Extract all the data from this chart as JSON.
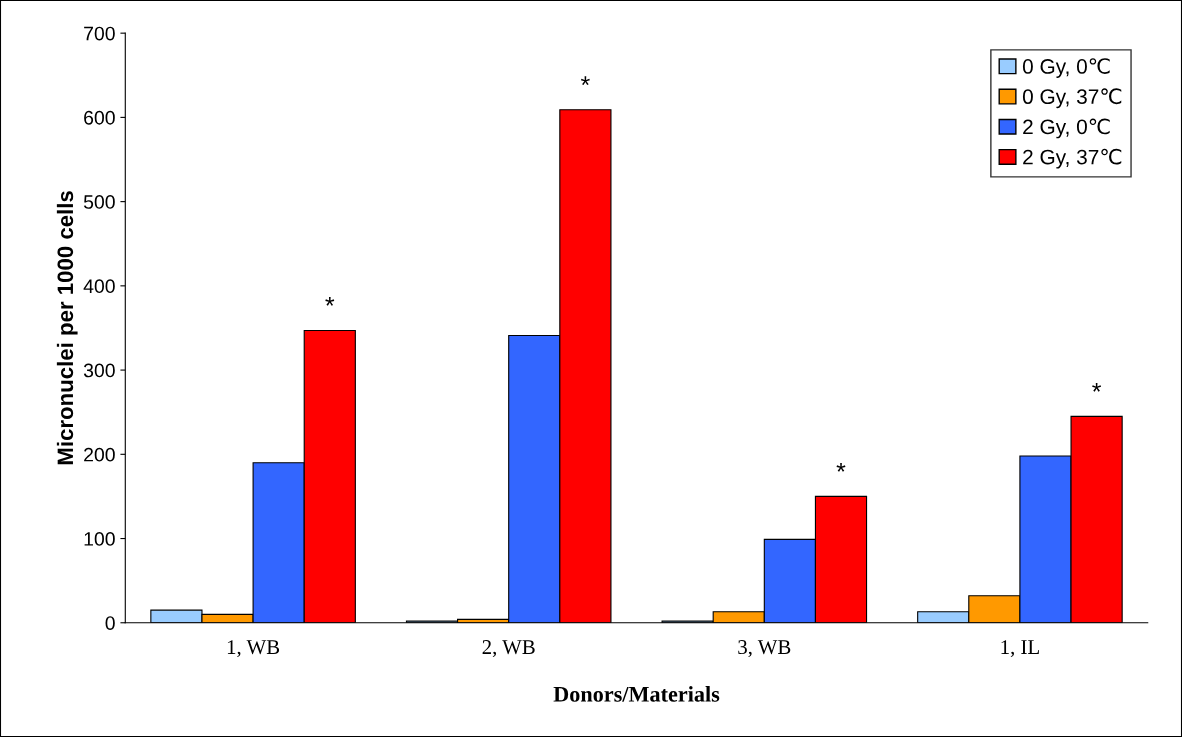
{
  "chart_data": {
    "type": "bar",
    "xlabel": "Donors/Materials",
    "ylabel": "Micronuclei per 1000 cells",
    "categories": [
      "1, WB",
      "2, WB",
      "3, WB",
      "1, IL"
    ],
    "series": [
      {
        "name": "0 Gy, 0℃",
        "color": "#99ccff",
        "values": [
          15,
          2,
          2,
          13
        ]
      },
      {
        "name": "0 Gy, 37℃",
        "color": "#ff9900",
        "values": [
          10,
          4,
          13,
          32
        ]
      },
      {
        "name": "2 Gy, 0℃",
        "color": "#3366ff",
        "values": [
          190,
          341,
          99,
          198
        ]
      },
      {
        "name": "2 Gy, 37℃",
        "color": "#ff0000",
        "values": [
          347,
          609,
          150,
          245
        ]
      }
    ],
    "ylim": [
      0,
      700
    ],
    "yticks": [
      0,
      100,
      200,
      300,
      400,
      500,
      600,
      700
    ],
    "legend": "top right",
    "grid": false,
    "annotations": [
      "*",
      "*",
      "*",
      "*"
    ]
  }
}
